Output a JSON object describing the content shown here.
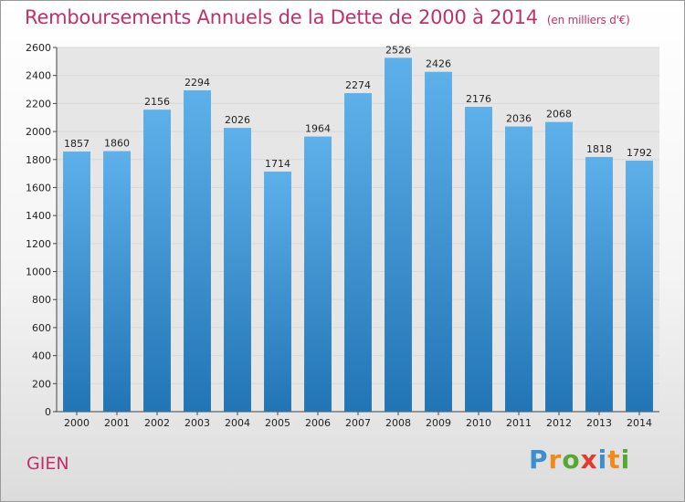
{
  "title": "Remboursements Annuels de la Dette de 2000 à 2014",
  "subtitle": "(en milliers d'€)",
  "city": "GIEN",
  "logo": {
    "letters": [
      "P",
      "r",
      "o",
      "x",
      "i",
      "t",
      "i"
    ],
    "colors": [
      "#3a8fd0",
      "#f08a1d",
      "#55a832",
      "#e23b2e",
      "#3a8fd0",
      "#f08a1d",
      "#55a832"
    ]
  },
  "colors": {
    "accent": "#c0306a",
    "bar_top": "#5eb0ea",
    "bar_bottom": "#2275b5",
    "grid": "#d8d8d8",
    "plot_bg": "#e6e6e6"
  },
  "chart_data": {
    "type": "bar",
    "title": "Remboursements Annuels de la Dette de 2000 à 2014",
    "subtitle": "(en milliers d'€)",
    "xlabel": "",
    "ylabel": "",
    "categories": [
      "2000",
      "2001",
      "2002",
      "2003",
      "2004",
      "2005",
      "2006",
      "2007",
      "2008",
      "2009",
      "2010",
      "2011",
      "2012",
      "2013",
      "2014"
    ],
    "values": [
      1857,
      1860,
      2156,
      2294,
      2026,
      1714,
      1964,
      2274,
      2526,
      2426,
      2176,
      2036,
      2068,
      1818,
      1792
    ],
    "ylim": [
      0,
      2600
    ],
    "yticks": [
      0,
      200,
      400,
      600,
      800,
      1000,
      1200,
      1400,
      1600,
      1800,
      2000,
      2200,
      2400,
      2600
    ],
    "grid": true,
    "data_labels": true
  }
}
